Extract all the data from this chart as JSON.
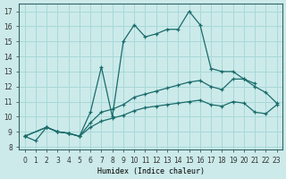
{
  "xlabel": "Humidex (Indice chaleur)",
  "bg_color": "#cceaea",
  "grid_color": "#a8d8d8",
  "line_color": "#1a6b6b",
  "xlim": [
    -0.5,
    23.5
  ],
  "ylim": [
    7.8,
    17.5
  ],
  "xticks": [
    0,
    1,
    2,
    3,
    4,
    5,
    6,
    7,
    8,
    9,
    10,
    11,
    12,
    13,
    14,
    15,
    16,
    17,
    18,
    19,
    20,
    21,
    22,
    23
  ],
  "yticks": [
    8,
    9,
    10,
    11,
    12,
    13,
    14,
    15,
    16,
    17
  ],
  "line1_x": [
    0,
    1,
    2,
    3,
    4,
    5,
    6,
    7,
    8,
    9,
    10,
    11,
    12,
    13,
    14,
    15,
    16,
    17,
    18,
    19,
    20,
    21
  ],
  "line1_y": [
    8.7,
    8.4,
    9.3,
    9.0,
    8.9,
    8.7,
    10.3,
    13.3,
    10.0,
    15.0,
    16.1,
    15.3,
    15.5,
    15.8,
    15.8,
    17.0,
    16.1,
    13.2,
    13.0,
    13.0,
    12.5,
    12.2
  ],
  "line2_x": [
    0,
    2,
    3,
    4,
    5,
    6,
    7,
    8,
    9,
    10,
    11,
    12,
    13,
    14,
    15,
    16,
    17,
    18,
    19,
    20,
    21,
    22,
    23
  ],
  "line2_y": [
    8.7,
    9.3,
    9.0,
    8.9,
    8.7,
    9.6,
    10.3,
    10.5,
    10.8,
    11.3,
    11.5,
    11.7,
    11.9,
    12.1,
    12.3,
    12.4,
    12.0,
    11.8,
    12.5,
    12.5,
    12.0,
    11.6,
    10.9
  ],
  "line3_x": [
    0,
    2,
    3,
    4,
    5,
    6,
    7,
    8,
    9,
    10,
    11,
    12,
    13,
    14,
    15,
    16,
    17,
    18,
    19,
    20,
    21,
    22,
    23
  ],
  "line3_y": [
    8.7,
    9.3,
    9.0,
    8.9,
    8.7,
    9.3,
    9.7,
    9.9,
    10.1,
    10.4,
    10.6,
    10.7,
    10.8,
    10.9,
    11.0,
    11.1,
    10.8,
    10.7,
    11.0,
    10.9,
    10.3,
    10.2,
    10.8
  ]
}
